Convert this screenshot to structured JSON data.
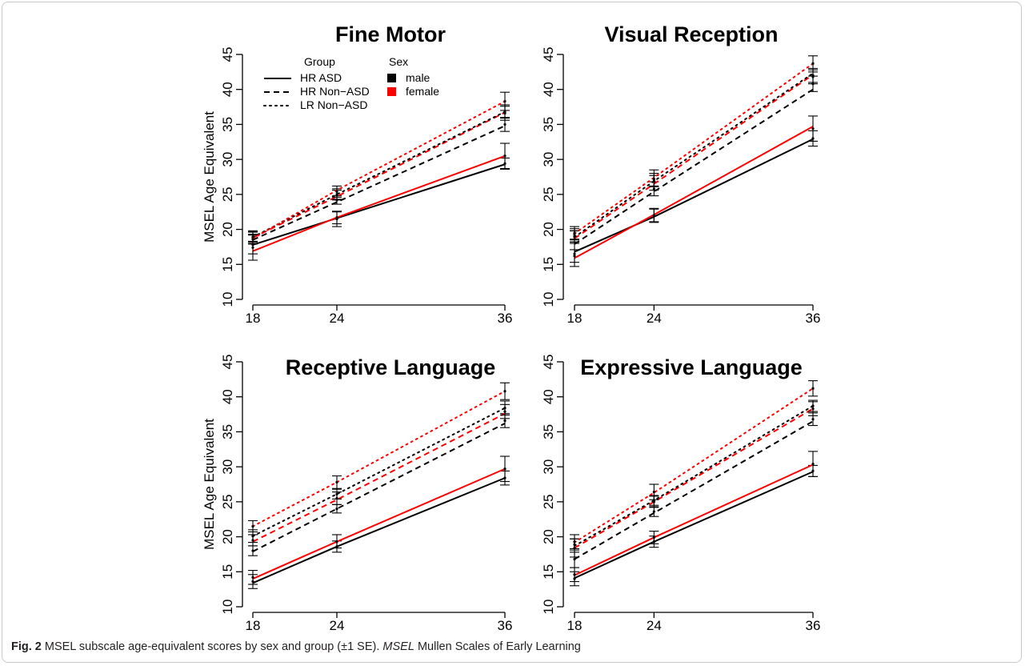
{
  "figure": {
    "label": "Fig. 2",
    "caption_main": "MSEL subscale age-equivalent scores by sex and group (±1 SE).",
    "caption_abbrev": "MSEL",
    "caption_abbrev_def": "Mullen Scales of Early Learning"
  },
  "legend": {
    "group_title": "Group",
    "sex_title": "Sex",
    "groups": [
      {
        "label": "HR ASD",
        "dash": "solid"
      },
      {
        "label": "HR Non−ASD",
        "dash": "dashed"
      },
      {
        "label": "LR Non−ASD",
        "dash": "dotted"
      }
    ],
    "sexes": [
      {
        "label": "male",
        "color": "#000000"
      },
      {
        "label": "female",
        "color": "#ff0000"
      }
    ]
  },
  "chart_data": [
    {
      "type": "line",
      "title": "Fine Motor",
      "ylabel": "MSEL Age Equivalent",
      "x": [
        18,
        24,
        36
      ],
      "xticks": [
        "18",
        "24",
        "36"
      ],
      "yticks": [
        "10",
        "15",
        "20",
        "25",
        "30",
        "35",
        "40",
        "45"
      ],
      "ylim": [
        10,
        45
      ],
      "series": [
        {
          "group": "HR ASD",
          "sex": "male",
          "color": "#000000",
          "dash": "solid",
          "values": [
            17.8,
            21.6,
            29.3
          ],
          "points": [
            {
              "x": 18,
              "mean": 17.4,
              "lo": 15.6,
              "hi": 19.2
            },
            {
              "x": 24,
              "mean": 21.5,
              "lo": 20.4,
              "hi": 22.5
            },
            {
              "x": 36,
              "mean": 29.4,
              "lo": 28.6,
              "hi": 30.2
            }
          ]
        },
        {
          "group": "HR ASD",
          "sex": "female",
          "color": "#ff0000",
          "dash": "solid",
          "values": [
            16.9,
            21.7,
            30.5
          ],
          "points": [
            {
              "x": 18,
              "mean": 17.8,
              "lo": 16.5,
              "hi": 19.2
            },
            {
              "x": 24,
              "mean": 21.7,
              "lo": 20.8,
              "hi": 22.6
            },
            {
              "x": 36,
              "mean": 30.5,
              "lo": 28.7,
              "hi": 32.3
            }
          ]
        },
        {
          "group": "HR Non-ASD",
          "sex": "male",
          "color": "#000000",
          "dash": "dashed",
          "values": [
            18.5,
            23.9,
            34.8
          ],
          "points": [
            {
              "x": 18,
              "mean": 18.6,
              "lo": 17.9,
              "hi": 19.3
            },
            {
              "x": 24,
              "mean": 24.2,
              "lo": 23.6,
              "hi": 24.8
            },
            {
              "x": 36,
              "mean": 35.0,
              "lo": 34.0,
              "hi": 36.0
            }
          ]
        },
        {
          "group": "HR Non-ASD",
          "sex": "female",
          "color": "#ff0000",
          "dash": "dashed",
          "values": [
            18.8,
            24.7,
            36.7
          ],
          "points": [
            {
              "x": 18,
              "mean": 18.9,
              "lo": 18.3,
              "hi": 19.6
            },
            {
              "x": 24,
              "mean": 24.9,
              "lo": 24.3,
              "hi": 25.6
            },
            {
              "x": 36,
              "mean": 36.6,
              "lo": 35.6,
              "hi": 37.6
            }
          ]
        },
        {
          "group": "LR Non-ASD",
          "sex": "male",
          "color": "#000000",
          "dash": "dotted",
          "values": [
            18.9,
            25.0,
            36.8
          ],
          "points": [
            {
              "x": 18,
              "mean": 18.9,
              "lo": 18.2,
              "hi": 19.7
            },
            {
              "x": 24,
              "mean": 25.0,
              "lo": 24.2,
              "hi": 25.8
            },
            {
              "x": 36,
              "mean": 36.8,
              "lo": 35.9,
              "hi": 37.8
            }
          ]
        },
        {
          "group": "LR Non-ASD",
          "sex": "female",
          "color": "#ff0000",
          "dash": "dotted",
          "values": [
            18.7,
            25.6,
            38.3
          ],
          "points": [
            {
              "x": 18,
              "mean": 18.9,
              "lo": 18.0,
              "hi": 19.8
            },
            {
              "x": 24,
              "mean": 25.4,
              "lo": 24.6,
              "hi": 26.2
            },
            {
              "x": 36,
              "mean": 38.3,
              "lo": 37.0,
              "hi": 39.6
            }
          ]
        }
      ]
    },
    {
      "type": "line",
      "title": "Visual Reception",
      "ylabel": "",
      "x": [
        18,
        24,
        36
      ],
      "xticks": [
        "18",
        "24",
        "36"
      ],
      "yticks": [
        "10",
        "15",
        "20",
        "25",
        "30",
        "35",
        "40",
        "45"
      ],
      "ylim": [
        10,
        45
      ],
      "series": [
        {
          "group": "HR ASD",
          "sex": "male",
          "color": "#000000",
          "dash": "solid",
          "values": [
            16.8,
            21.8,
            32.9
          ],
          "points": [
            {
              "x": 18,
              "mean": 16.5,
              "lo": 14.7,
              "hi": 18.2
            },
            {
              "x": 24,
              "mean": 22.0,
              "lo": 21.0,
              "hi": 23.0
            },
            {
              "x": 36,
              "mean": 33.0,
              "lo": 31.9,
              "hi": 34.1
            }
          ]
        },
        {
          "group": "HR ASD",
          "sex": "female",
          "color": "#ff0000",
          "dash": "solid",
          "values": [
            15.9,
            22.1,
            34.7
          ],
          "points": [
            {
              "x": 18,
              "mean": 16.2,
              "lo": 15.3,
              "hi": 17.1
            },
            {
              "x": 24,
              "mean": 22.0,
              "lo": 21.1,
              "hi": 22.9
            },
            {
              "x": 36,
              "mean": 34.4,
              "lo": 32.6,
              "hi": 36.2
            }
          ]
        },
        {
          "group": "HR Non-ASD",
          "sex": "male",
          "color": "#000000",
          "dash": "dashed",
          "values": [
            17.9,
            25.4,
            40.0
          ],
          "points": [
            {
              "x": 18,
              "mean": 18.9,
              "lo": 18.0,
              "hi": 19.8
            },
            {
              "x": 24,
              "mean": 25.8,
              "lo": 24.8,
              "hi": 26.8
            },
            {
              "x": 36,
              "mean": 40.8,
              "lo": 39.7,
              "hi": 41.9
            }
          ]
        },
        {
          "group": "HR Non-ASD",
          "sex": "female",
          "color": "#ff0000",
          "dash": "dashed",
          "values": [
            18.7,
            26.5,
            42.1
          ],
          "points": [
            {
              "x": 18,
              "mean": 19.0,
              "lo": 18.2,
              "hi": 19.8
            },
            {
              "x": 24,
              "mean": 26.8,
              "lo": 25.6,
              "hi": 28.0
            },
            {
              "x": 36,
              "mean": 41.8,
              "lo": 40.8,
              "hi": 42.8
            }
          ]
        },
        {
          "group": "LR Non-ASD",
          "sex": "male",
          "color": "#000000",
          "dash": "dotted",
          "values": [
            18.9,
            26.9,
            42.3
          ],
          "points": [
            {
              "x": 18,
              "mean": 19.3,
              "lo": 18.5,
              "hi": 20.1
            },
            {
              "x": 24,
              "mean": 26.9,
              "lo": 26.1,
              "hi": 27.7
            },
            {
              "x": 36,
              "mean": 42.0,
              "lo": 41.0,
              "hi": 43.0
            }
          ]
        },
        {
          "group": "LR Non-ASD",
          "sex": "female",
          "color": "#ff0000",
          "dash": "dotted",
          "values": [
            19.4,
            27.4,
            43.7
          ],
          "points": [
            {
              "x": 18,
              "mean": 19.5,
              "lo": 18.6,
              "hi": 20.4
            },
            {
              "x": 24,
              "mean": 27.2,
              "lo": 26.2,
              "hi": 28.5
            },
            {
              "x": 36,
              "mean": 43.7,
              "lo": 42.5,
              "hi": 44.8
            }
          ]
        }
      ]
    },
    {
      "type": "line",
      "title": "Receptive Language",
      "ylabel": "MSEL Age Equivalent",
      "x": [
        18,
        24,
        36
      ],
      "xticks": [
        "18",
        "24",
        "36"
      ],
      "yticks": [
        "10",
        "15",
        "20",
        "25",
        "30",
        "35",
        "40",
        "45"
      ],
      "ylim": [
        10,
        45
      ],
      "series": [
        {
          "group": "HR ASD",
          "sex": "male",
          "color": "#000000",
          "dash": "solid",
          "values": [
            13.4,
            18.6,
            28.4
          ],
          "points": [
            {
              "x": 18,
              "mean": 13.6,
              "lo": 12.6,
              "hi": 14.6
            },
            {
              "x": 24,
              "mean": 18.6,
              "lo": 17.8,
              "hi": 19.4
            },
            {
              "x": 36,
              "mean": 28.4,
              "lo": 27.4,
              "hi": 29.4
            }
          ]
        },
        {
          "group": "HR ASD",
          "sex": "female",
          "color": "#ff0000",
          "dash": "solid",
          "values": [
            14.0,
            19.3,
            29.7
          ],
          "points": [
            {
              "x": 18,
              "mean": 14.2,
              "lo": 13.2,
              "hi": 15.2
            },
            {
              "x": 24,
              "mean": 19.3,
              "lo": 18.4,
              "hi": 20.3
            },
            {
              "x": 36,
              "mean": 29.7,
              "lo": 27.9,
              "hi": 31.5
            }
          ]
        },
        {
          "group": "HR Non-ASD",
          "sex": "male",
          "color": "#000000",
          "dash": "dashed",
          "values": [
            17.9,
            24.0,
            36.2
          ],
          "points": [
            {
              "x": 18,
              "mean": 18.0,
              "lo": 17.3,
              "hi": 18.7
            },
            {
              "x": 24,
              "mean": 24.0,
              "lo": 23.4,
              "hi": 24.6
            },
            {
              "x": 36,
              "mean": 36.6,
              "lo": 35.6,
              "hi": 37.6
            }
          ]
        },
        {
          "group": "HR Non-ASD",
          "sex": "female",
          "color": "#ff0000",
          "dash": "dashed",
          "values": [
            19.3,
            25.3,
            37.6
          ],
          "points": [
            {
              "x": 18,
              "mean": 19.5,
              "lo": 18.7,
              "hi": 20.3
            },
            {
              "x": 24,
              "mean": 25.5,
              "lo": 24.6,
              "hi": 26.4
            },
            {
              "x": 36,
              "mean": 37.9,
              "lo": 36.9,
              "hi": 38.9
            }
          ]
        },
        {
          "group": "LR Non-ASD",
          "sex": "male",
          "color": "#000000",
          "dash": "dotted",
          "values": [
            20.1,
            26.1,
            38.4
          ],
          "points": [
            {
              "x": 18,
              "mean": 20.1,
              "lo": 19.2,
              "hi": 21.0
            },
            {
              "x": 24,
              "mean": 26.1,
              "lo": 25.4,
              "hi": 26.8
            },
            {
              "x": 36,
              "mean": 38.4,
              "lo": 37.4,
              "hi": 39.4
            }
          ]
        },
        {
          "group": "LR Non-ASD",
          "sex": "female",
          "color": "#ff0000",
          "dash": "dotted",
          "values": [
            21.5,
            27.8,
            40.8
          ],
          "points": [
            {
              "x": 18,
              "mean": 21.5,
              "lo": 20.7,
              "hi": 22.3
            },
            {
              "x": 24,
              "mean": 27.8,
              "lo": 26.9,
              "hi": 28.7
            },
            {
              "x": 36,
              "mean": 40.8,
              "lo": 39.6,
              "hi": 42.0
            }
          ]
        }
      ]
    },
    {
      "type": "line",
      "title": "Expressive Language",
      "ylabel": "",
      "x": [
        18,
        24,
        36
      ],
      "xticks": [
        "18",
        "24",
        "36"
      ],
      "yticks": [
        "10",
        "15",
        "20",
        "25",
        "30",
        "35",
        "40",
        "45"
      ],
      "ylim": [
        10,
        45
      ],
      "series": [
        {
          "group": "HR ASD",
          "sex": "male",
          "color": "#000000",
          "dash": "solid",
          "values": [
            14.1,
            19.3,
            29.3
          ],
          "points": [
            {
              "x": 18,
              "mean": 14.0,
              "lo": 13.0,
              "hi": 15.0
            },
            {
              "x": 24,
              "mean": 19.3,
              "lo": 18.5,
              "hi": 20.1
            },
            {
              "x": 36,
              "mean": 29.4,
              "lo": 28.6,
              "hi": 30.2
            }
          ]
        },
        {
          "group": "HR ASD",
          "sex": "female",
          "color": "#ff0000",
          "dash": "solid",
          "values": [
            14.5,
            19.9,
            30.3
          ],
          "points": [
            {
              "x": 18,
              "mean": 14.6,
              "lo": 13.6,
              "hi": 15.6
            },
            {
              "x": 24,
              "mean": 19.9,
              "lo": 19.0,
              "hi": 20.8
            },
            {
              "x": 36,
              "mean": 30.4,
              "lo": 28.6,
              "hi": 32.2
            }
          ]
        },
        {
          "group": "HR Non-ASD",
          "sex": "male",
          "color": "#000000",
          "dash": "dashed",
          "values": [
            16.8,
            23.4,
            36.5
          ],
          "points": [
            {
              "x": 18,
              "mean": 16.8,
              "lo": 15.6,
              "hi": 17.8
            },
            {
              "x": 24,
              "mean": 23.6,
              "lo": 22.9,
              "hi": 24.3
            },
            {
              "x": 36,
              "mean": 36.8,
              "lo": 35.9,
              "hi": 37.7
            }
          ]
        },
        {
          "group": "HR Non-ASD",
          "sex": "female",
          "color": "#ff0000",
          "dash": "dashed",
          "values": [
            18.4,
            25.0,
            38.3
          ],
          "points": [
            {
              "x": 18,
              "mean": 18.4,
              "lo": 17.1,
              "hi": 19.7
            },
            {
              "x": 24,
              "mean": 25.0,
              "lo": 24.2,
              "hi": 25.8
            },
            {
              "x": 36,
              "mean": 38.3,
              "lo": 37.3,
              "hi": 39.3
            }
          ]
        },
        {
          "group": "LR Non-ASD",
          "sex": "male",
          "color": "#000000",
          "dash": "dotted",
          "values": [
            18.7,
            25.2,
            38.7
          ],
          "points": [
            {
              "x": 18,
              "mean": 18.9,
              "lo": 18.1,
              "hi": 19.7
            },
            {
              "x": 24,
              "mean": 25.2,
              "lo": 24.5,
              "hi": 25.9
            },
            {
              "x": 36,
              "mean": 38.7,
              "lo": 37.9,
              "hi": 39.5
            }
          ]
        },
        {
          "group": "LR Non-ASD",
          "sex": "female",
          "color": "#ff0000",
          "dash": "dotted",
          "values": [
            19.2,
            26.3,
            41.2
          ],
          "points": [
            {
              "x": 18,
              "mean": 19.3,
              "lo": 18.3,
              "hi": 20.3
            },
            {
              "x": 24,
              "mean": 26.4,
              "lo": 25.3,
              "hi": 27.5
            },
            {
              "x": 36,
              "mean": 41.2,
              "lo": 40.1,
              "hi": 42.3
            }
          ]
        }
      ]
    }
  ]
}
